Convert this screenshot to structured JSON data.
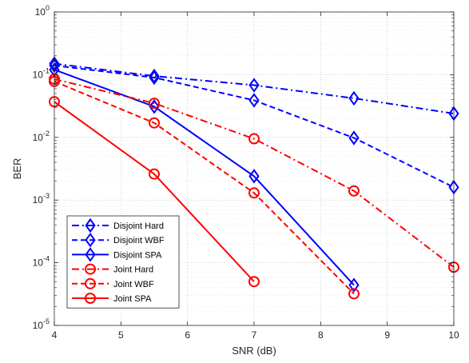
{
  "chart_data": {
    "type": "line",
    "xlabel": "SNR (dB)",
    "ylabel": "BER",
    "x_ticks": [
      "4",
      "5",
      "6",
      "7",
      "8",
      "9",
      "10"
    ],
    "y_ticks": [
      {
        "base": "10",
        "exp": "-5"
      },
      {
        "base": "10",
        "exp": "-4"
      },
      {
        "base": "10",
        "exp": "-3"
      },
      {
        "base": "10",
        "exp": "-2"
      },
      {
        "base": "10",
        "exp": "-1"
      },
      {
        "base": "10",
        "exp": "0"
      }
    ],
    "xlim": [
      4,
      10
    ],
    "ylim": [
      1e-05,
      1
    ],
    "yscale": "log",
    "grid": true,
    "legend_position": "bottom-left",
    "series": [
      {
        "name": "Disjoint Hard",
        "color": "#0000ff",
        "dash": "dashdot",
        "marker": "diamond",
        "x": [
          4,
          5.5,
          7,
          8.5,
          10
        ],
        "y": [
          0.15,
          0.095,
          0.068,
          0.042,
          0.024
        ]
      },
      {
        "name": "Disjoint WBF",
        "color": "#0000ff",
        "dash": "dashed",
        "marker": "diamond",
        "x": [
          4,
          5.5,
          7,
          8.5,
          10
        ],
        "y": [
          0.14,
          0.09,
          0.039,
          0.0098,
          0.0016
        ]
      },
      {
        "name": "Disjoint SPA",
        "color": "#0000ff",
        "dash": "solid",
        "marker": "diamond",
        "x": [
          4,
          5.5,
          7,
          8.5
        ],
        "y": [
          0.12,
          0.031,
          0.0024,
          4.4e-05
        ]
      },
      {
        "name": "Joint Hard",
        "color": "#ff0000",
        "dash": "dashdot",
        "marker": "circle",
        "x": [
          4,
          5.5,
          7,
          8.5,
          10
        ],
        "y": [
          0.085,
          0.035,
          0.0095,
          0.0014,
          8.5e-05
        ]
      },
      {
        "name": "Joint WBF",
        "color": "#ff0000",
        "dash": "dashed",
        "marker": "circle",
        "x": [
          4,
          5.5,
          7,
          8.5
        ],
        "y": [
          0.078,
          0.017,
          0.0013,
          3.2e-05
        ]
      },
      {
        "name": "Joint SPA",
        "color": "#ff0000",
        "dash": "solid",
        "marker": "circle",
        "x": [
          4,
          5.5,
          7
        ],
        "y": [
          0.037,
          0.0026,
          5e-05
        ]
      }
    ]
  }
}
